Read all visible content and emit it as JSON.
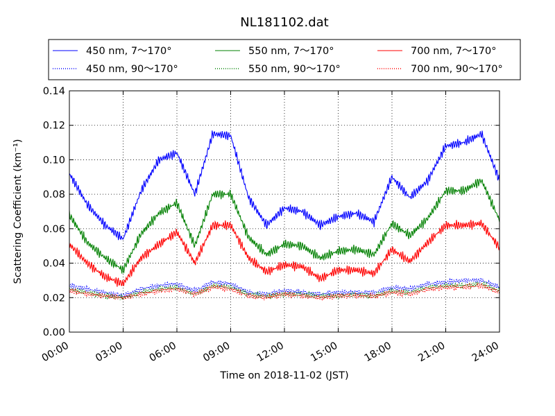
{
  "chart_data": {
    "type": "line",
    "title": "NL181102.dat",
    "xlabel": "Time on 2018-11-02 (JST)",
    "ylabel": "Scattering Coefficient (km⁻¹)",
    "xlim": [
      "00:00",
      "24:00"
    ],
    "ylim": [
      0,
      0.14
    ],
    "x_ticks": [
      "00:00",
      "03:00",
      "06:00",
      "09:00",
      "12:00",
      "15:00",
      "18:00",
      "21:00",
      "24:00"
    ],
    "y_ticks": [
      "0.00",
      "0.02",
      "0.04",
      "0.06",
      "0.08",
      "0.10",
      "0.12",
      "0.14"
    ],
    "grid": true,
    "legend_position": "top",
    "x": [
      "00:00",
      "01:00",
      "02:00",
      "03:00",
      "04:00",
      "05:00",
      "06:00",
      "07:00",
      "08:00",
      "09:00",
      "10:00",
      "11:00",
      "12:00",
      "13:00",
      "14:00",
      "15:00",
      "16:00",
      "17:00",
      "18:00",
      "19:00",
      "20:00",
      "21:00",
      "22:00",
      "23:00",
      "24:00"
    ],
    "series": [
      {
        "name": "450 nm, 7～170°",
        "color": "#0000ff",
        "style": "solid",
        "values": [
          0.092,
          0.074,
          0.062,
          0.054,
          0.082,
          0.1,
          0.104,
          0.08,
          0.115,
          0.114,
          0.078,
          0.062,
          0.072,
          0.07,
          0.062,
          0.067,
          0.069,
          0.064,
          0.09,
          0.078,
          0.088,
          0.108,
          0.11,
          0.115,
          0.088
        ]
      },
      {
        "name": "550 nm, 7～170°",
        "color": "#008000",
        "style": "solid",
        "values": [
          0.068,
          0.052,
          0.043,
          0.036,
          0.057,
          0.069,
          0.075,
          0.05,
          0.08,
          0.08,
          0.055,
          0.045,
          0.051,
          0.05,
          0.043,
          0.047,
          0.048,
          0.045,
          0.063,
          0.056,
          0.066,
          0.082,
          0.082,
          0.088,
          0.065
        ]
      },
      {
        "name": "700 nm, 7～170°",
        "color": "#ff0000",
        "style": "solid",
        "values": [
          0.051,
          0.04,
          0.032,
          0.028,
          0.043,
          0.051,
          0.058,
          0.04,
          0.062,
          0.062,
          0.043,
          0.035,
          0.039,
          0.038,
          0.031,
          0.036,
          0.036,
          0.034,
          0.048,
          0.041,
          0.052,
          0.062,
          0.062,
          0.063,
          0.049
        ]
      },
      {
        "name": "450 nm, 90～170°",
        "color": "#0000ff",
        "style": "dotted",
        "values": [
          0.027,
          0.025,
          0.023,
          0.021,
          0.025,
          0.027,
          0.028,
          0.024,
          0.029,
          0.028,
          0.023,
          0.022,
          0.024,
          0.023,
          0.022,
          0.023,
          0.023,
          0.023,
          0.026,
          0.025,
          0.028,
          0.029,
          0.03,
          0.03,
          0.026
        ]
      },
      {
        "name": "550 nm, 90～170°",
        "color": "#008000",
        "style": "dotted",
        "values": [
          0.025,
          0.023,
          0.021,
          0.02,
          0.023,
          0.025,
          0.026,
          0.022,
          0.027,
          0.026,
          0.022,
          0.021,
          0.022,
          0.022,
          0.021,
          0.021,
          0.022,
          0.021,
          0.024,
          0.023,
          0.026,
          0.027,
          0.027,
          0.028,
          0.024
        ]
      },
      {
        "name": "700 nm, 90～170°",
        "color": "#ff0000",
        "style": "dotted",
        "values": [
          0.024,
          0.022,
          0.021,
          0.02,
          0.022,
          0.024,
          0.025,
          0.022,
          0.026,
          0.025,
          0.021,
          0.02,
          0.022,
          0.021,
          0.02,
          0.021,
          0.021,
          0.021,
          0.023,
          0.022,
          0.025,
          0.026,
          0.026,
          0.027,
          0.023
        ]
      }
    ]
  }
}
